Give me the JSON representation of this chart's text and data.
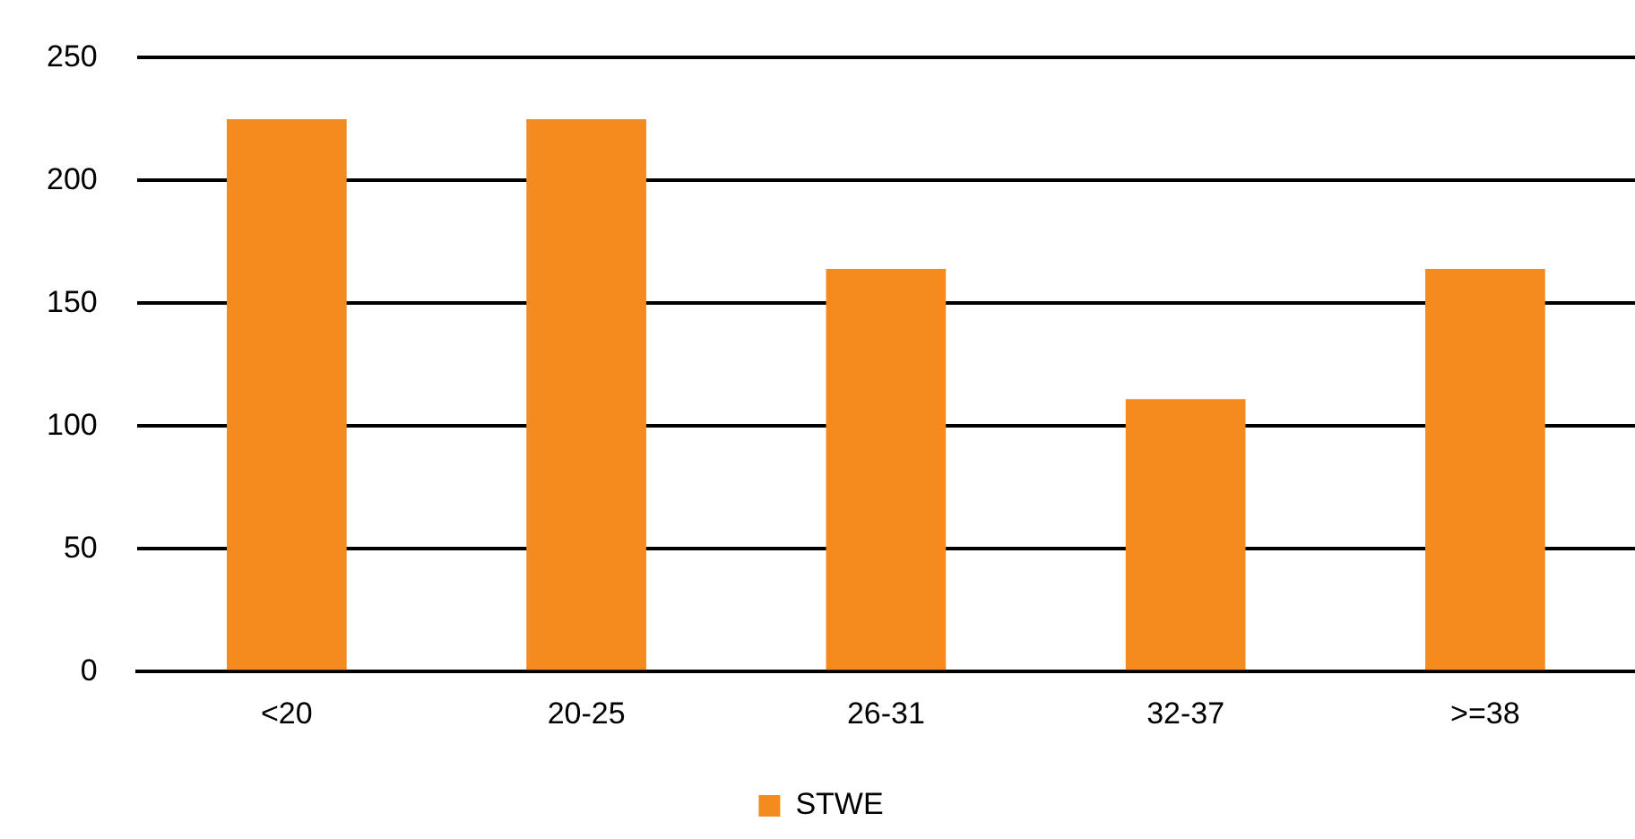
{
  "chart_data": {
    "type": "bar",
    "categories": [
      "<20",
      "20-25",
      "26-31",
      "32-37",
      ">=38"
    ],
    "series": [
      {
        "name": "STWE",
        "color": "#f58b1f",
        "values": [
          225,
          225,
          164,
          111,
          164
        ]
      }
    ],
    "ylim": [
      0,
      250
    ],
    "yticks": [
      0,
      50,
      100,
      150,
      200,
      250
    ],
    "grid": "y",
    "legend": "bottom"
  }
}
